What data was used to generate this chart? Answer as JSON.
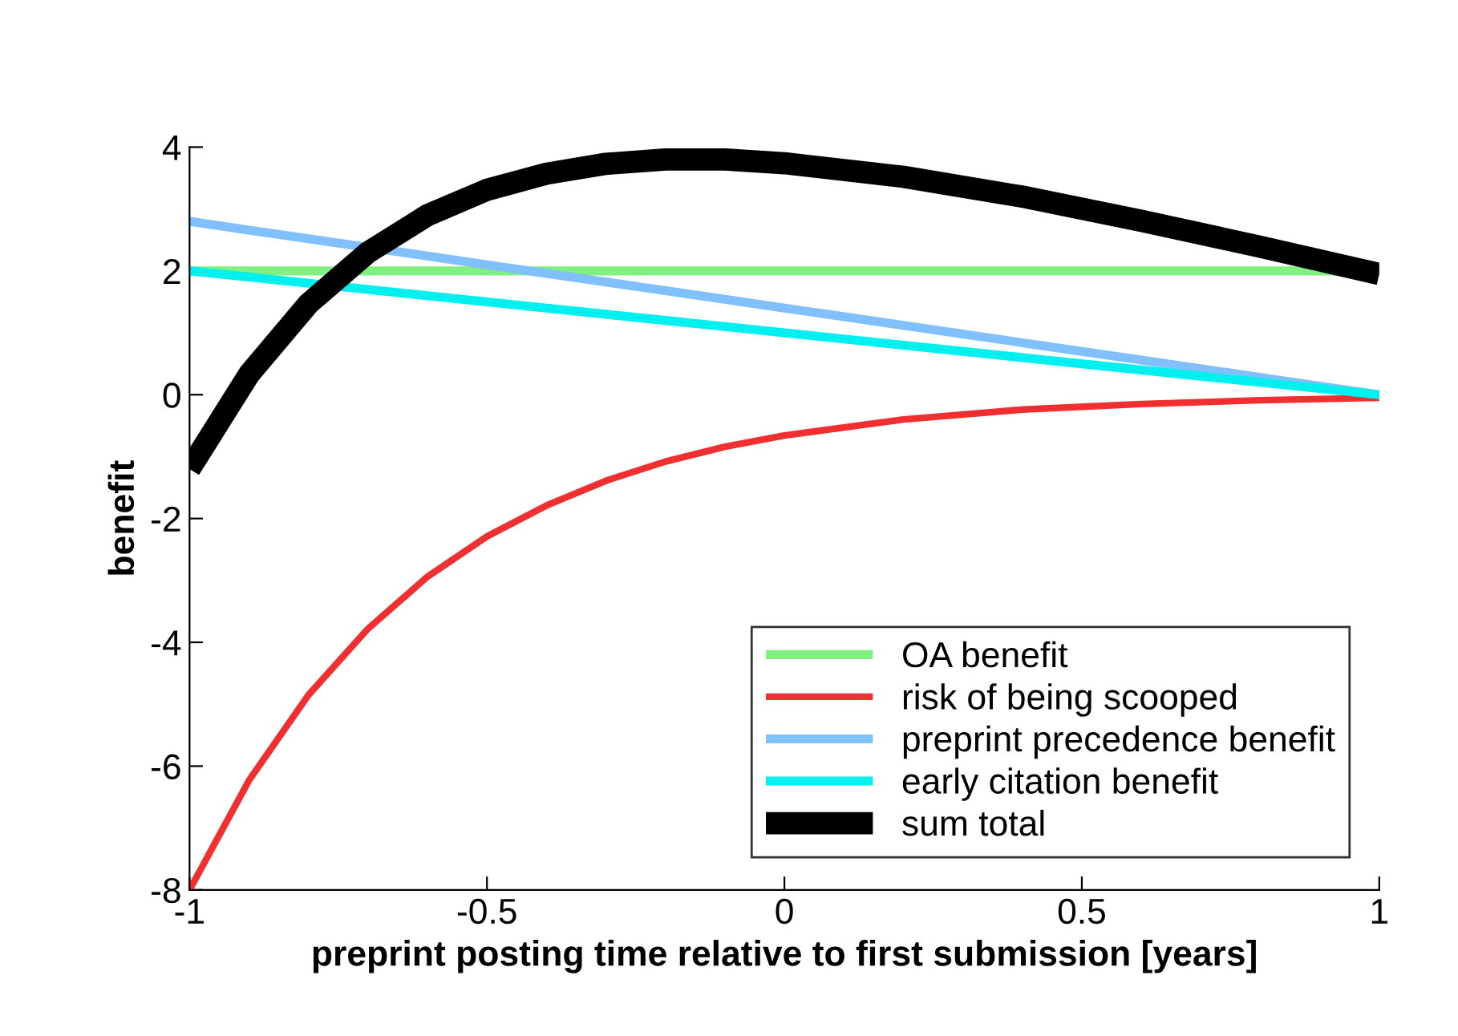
{
  "chart_data": {
    "type": "line",
    "xlabel": "preprint posting time relative to first submission [years]",
    "ylabel": "benefit",
    "x": [
      -1,
      -0.9,
      -0.8,
      -0.7,
      -0.6,
      -0.5,
      -0.4,
      -0.3,
      -0.2,
      -0.1,
      0,
      0.2,
      0.4,
      0.6,
      0.8,
      1
    ],
    "series": [
      {
        "name": "OA benefit",
        "color": "#80f080",
        "values": [
          2,
          2,
          2,
          2,
          2,
          2,
          2,
          2,
          2,
          2,
          2,
          2,
          2,
          2,
          2,
          2
        ]
      },
      {
        "name": "risk of being scooped",
        "color": "#f03030",
        "values": [
          -8,
          -6.23,
          -4.85,
          -3.78,
          -2.94,
          -2.29,
          -1.79,
          -1.39,
          -1.08,
          -0.84,
          -0.66,
          -0.4,
          -0.24,
          -0.15,
          -0.09,
          -0.05
        ]
      },
      {
        "name": "preprint precedence benefit",
        "color": "#80c0ff",
        "values": [
          2.8,
          2.66,
          2.52,
          2.38,
          2.24,
          2.1,
          1.96,
          1.82,
          1.68,
          1.54,
          1.4,
          1.12,
          0.84,
          0.56,
          0.28,
          0
        ]
      },
      {
        "name": "early citation benefit",
        "color": "#00f0f0",
        "values": [
          2,
          1.9,
          1.8,
          1.7,
          1.6,
          1.5,
          1.4,
          1.3,
          1.2,
          1.1,
          1,
          0.8,
          0.6,
          0.4,
          0.2,
          0
        ]
      },
      {
        "name": "sum total",
        "color": "#000000",
        "values": [
          -1.2,
          0.33,
          1.47,
          2.3,
          2.9,
          3.31,
          3.57,
          3.73,
          3.8,
          3.8,
          3.74,
          3.52,
          3.2,
          2.81,
          2.39,
          1.95
        ]
      }
    ],
    "xlim": [
      -1,
      1
    ],
    "ylim": [
      -8,
      4
    ],
    "xticks": [
      -1,
      -0.5,
      0,
      0.5,
      1
    ],
    "yticks": [
      -8,
      -6,
      -4,
      -2,
      0,
      2,
      4
    ],
    "grid": false,
    "legend": "bottom right",
    "marker": "none",
    "line_style": "solid"
  }
}
